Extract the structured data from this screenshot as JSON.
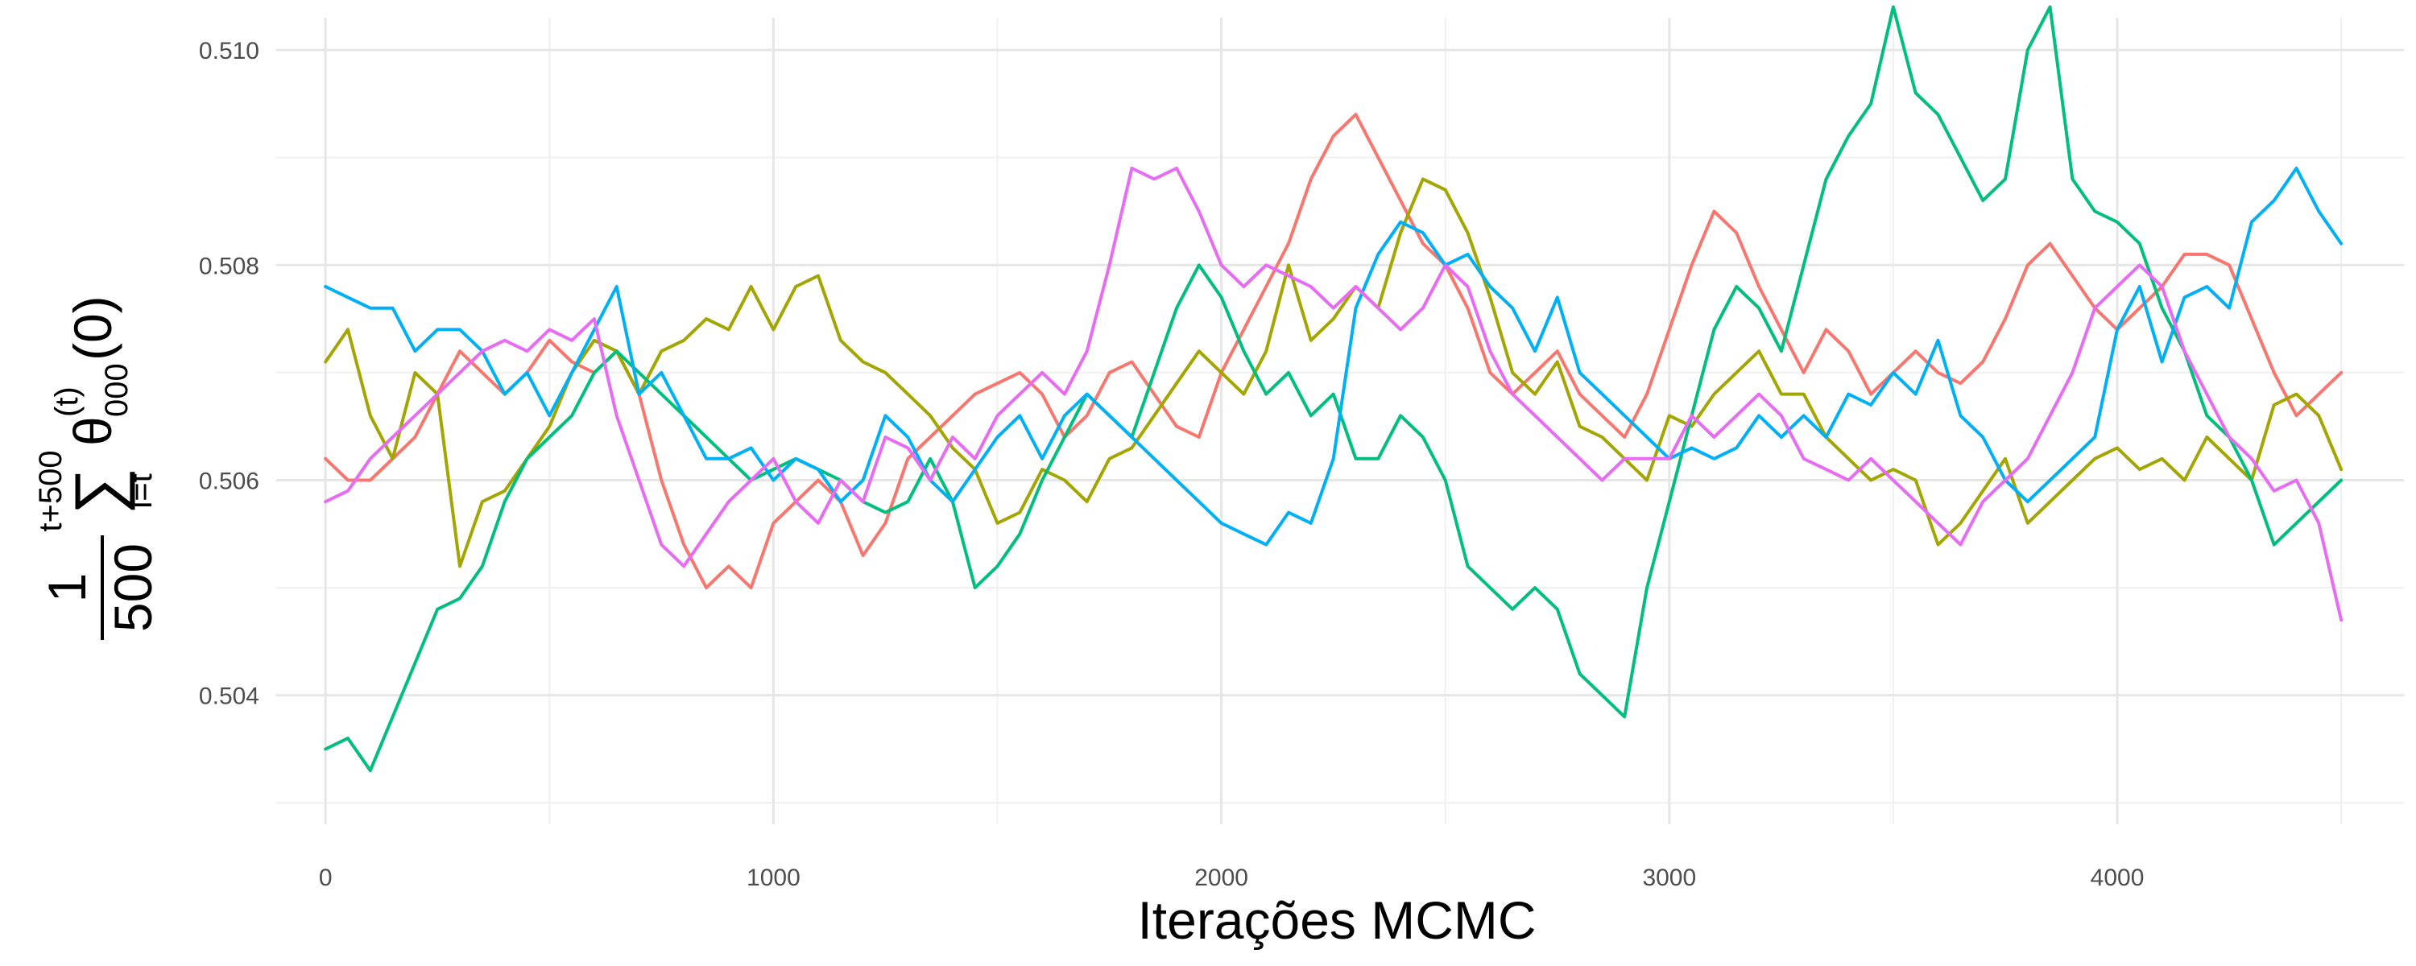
{
  "chart_data": {
    "type": "line",
    "title": "",
    "xlabel": "Iterações MCMC",
    "ylabel": {
      "fraction_numerator": "1",
      "fraction_denominator": "500",
      "sum_upper": "t+500",
      "sum_lower": "i=t",
      "symbol": "θ",
      "superscript": "(t)",
      "subscript": "000",
      "argument": "(0)"
    },
    "xlim": [
      -110,
      4640
    ],
    "ylim": [
      -0.5028,
      0.5103
    ],
    "x_ticks": [
      0,
      1000,
      2000,
      3000,
      4000
    ],
    "x_tick_labels": [
      "0",
      "1000",
      "2000",
      "3000",
      "4000"
    ],
    "y_ticks": [
      0.504,
      0.506,
      0.508,
      0.51
    ],
    "y_tick_labels": [
      "0.504",
      "0.506",
      "0.508",
      "0.510"
    ],
    "grid": true,
    "legend": "none",
    "x_step": 50,
    "series": [
      {
        "color": "#F8766D",
        "values": [
          0.5062,
          0.506,
          0.506,
          0.5062,
          0.5064,
          0.5068,
          0.5072,
          0.507,
          0.5068,
          0.507,
          0.5073,
          0.5071,
          0.507,
          0.5072,
          0.5068,
          0.506,
          0.5054,
          0.505,
          0.5052,
          0.505,
          0.5056,
          0.5058,
          0.506,
          0.5058,
          0.5053,
          0.5056,
          0.5062,
          0.5064,
          0.5066,
          0.5068,
          0.5069,
          0.507,
          0.5068,
          0.5064,
          0.5066,
          0.507,
          0.5071,
          0.5068,
          0.5065,
          0.5064,
          0.507,
          0.5074,
          0.5078,
          0.5082,
          0.5088,
          0.5092,
          0.5094,
          0.509,
          0.5086,
          0.5082,
          0.508,
          0.5076,
          0.507,
          0.5068,
          0.507,
          0.5072,
          0.5068,
          0.5066,
          0.5064,
          0.5068,
          0.5074,
          0.508,
          0.5085,
          0.5083,
          0.5078,
          0.5074,
          0.507,
          0.5074,
          0.5072,
          0.5068,
          0.507,
          0.5072,
          0.507,
          0.5069,
          0.5071,
          0.5075,
          0.508,
          0.5082,
          0.5079,
          0.5076,
          0.5074,
          0.5076,
          0.5078,
          0.5081,
          0.5081,
          0.508,
          0.5075,
          0.507,
          0.5066,
          0.5068,
          0.507
        ]
      },
      {
        "color": "#A3A500",
        "values": [
          0.5071,
          0.5074,
          0.5066,
          0.5062,
          0.507,
          0.5068,
          0.5052,
          0.5058,
          0.5059,
          0.5062,
          0.5065,
          0.507,
          0.5073,
          0.5072,
          0.5068,
          0.5072,
          0.5073,
          0.5075,
          0.5074,
          0.5078,
          0.5074,
          0.5078,
          0.5079,
          0.5073,
          0.5071,
          0.507,
          0.5068,
          0.5066,
          0.5063,
          0.5061,
          0.5056,
          0.5057,
          0.5061,
          0.506,
          0.5058,
          0.5062,
          0.5063,
          0.5066,
          0.5069,
          0.5072,
          0.507,
          0.5068,
          0.5072,
          0.508,
          0.5073,
          0.5075,
          0.5078,
          0.5076,
          0.5083,
          0.5088,
          0.5087,
          0.5083,
          0.5077,
          0.507,
          0.5068,
          0.5071,
          0.5065,
          0.5064,
          0.5062,
          0.506,
          0.5066,
          0.5065,
          0.5068,
          0.507,
          0.5072,
          0.5068,
          0.5068,
          0.5064,
          0.5062,
          0.506,
          0.5061,
          0.506,
          0.5054,
          0.5056,
          0.5059,
          0.5062,
          0.5056,
          0.5058,
          0.506,
          0.5062,
          0.5063,
          0.5061,
          0.5062,
          0.506,
          0.5064,
          0.5062,
          0.506,
          0.5067,
          0.5068,
          0.5066,
          0.5061
        ]
      },
      {
        "color": "#00BF7D",
        "values": [
          0.5035,
          0.5036,
          0.5033,
          0.5038,
          0.5043,
          0.5048,
          0.5049,
          0.5052,
          0.5058,
          0.5062,
          0.5064,
          0.5066,
          0.507,
          0.5072,
          0.507,
          0.5068,
          0.5066,
          0.5064,
          0.5062,
          0.506,
          0.5061,
          0.5062,
          0.5061,
          0.506,
          0.5058,
          0.5057,
          0.5058,
          0.5062,
          0.5058,
          0.505,
          0.5052,
          0.5055,
          0.506,
          0.5064,
          0.5068,
          0.5066,
          0.5064,
          0.507,
          0.5076,
          0.508,
          0.5077,
          0.5072,
          0.5068,
          0.507,
          0.5066,
          0.5068,
          0.5062,
          0.5062,
          0.5066,
          0.5064,
          0.506,
          0.5052,
          0.505,
          0.5048,
          0.505,
          0.5048,
          0.5042,
          0.504,
          0.5038,
          0.505,
          0.5058,
          0.5066,
          0.5074,
          0.5078,
          0.5076,
          0.5072,
          0.508,
          0.5088,
          0.5092,
          0.5095,
          0.5104,
          0.5096,
          0.5094,
          0.509,
          0.5086,
          0.5088,
          0.51,
          0.5104,
          0.5088,
          0.5085,
          0.5084,
          0.5082,
          0.5076,
          0.5072,
          0.5066,
          0.5064,
          0.506,
          0.5054,
          0.5056,
          0.5058,
          0.506
        ]
      },
      {
        "color": "#00B0F6",
        "values": [
          0.5078,
          0.5077,
          0.5076,
          0.5076,
          0.5072,
          0.5074,
          0.5074,
          0.5072,
          0.5068,
          0.507,
          0.5066,
          0.507,
          0.5074,
          0.5078,
          0.5068,
          0.507,
          0.5066,
          0.5062,
          0.5062,
          0.5063,
          0.506,
          0.5062,
          0.5061,
          0.5058,
          0.506,
          0.5066,
          0.5064,
          0.506,
          0.5058,
          0.5061,
          0.5064,
          0.5066,
          0.5062,
          0.5066,
          0.5068,
          0.5066,
          0.5064,
          0.5062,
          0.506,
          0.5058,
          0.5056,
          0.5055,
          0.5054,
          0.5057,
          0.5056,
          0.5062,
          0.5076,
          0.5081,
          0.5084,
          0.5083,
          0.508,
          0.5081,
          0.5078,
          0.5076,
          0.5072,
          0.5077,
          0.507,
          0.5068,
          0.5066,
          0.5064,
          0.5062,
          0.5063,
          0.5062,
          0.5063,
          0.5066,
          0.5064,
          0.5066,
          0.5064,
          0.5068,
          0.5067,
          0.507,
          0.5068,
          0.5073,
          0.5066,
          0.5064,
          0.506,
          0.5058,
          0.506,
          0.5062,
          0.5064,
          0.5074,
          0.5078,
          0.5071,
          0.5077,
          0.5078,
          0.5076,
          0.5084,
          0.5086,
          0.5089,
          0.5085,
          0.5082
        ]
      },
      {
        "color": "#E76BF3",
        "values": [
          0.5058,
          0.5059,
          0.5062,
          0.5064,
          0.5066,
          0.5068,
          0.507,
          0.5072,
          0.5073,
          0.5072,
          0.5074,
          0.5073,
          0.5075,
          0.5066,
          0.506,
          0.5054,
          0.5052,
          0.5055,
          0.5058,
          0.506,
          0.5062,
          0.5058,
          0.5056,
          0.506,
          0.5058,
          0.5064,
          0.5063,
          0.506,
          0.5064,
          0.5062,
          0.5066,
          0.5068,
          0.507,
          0.5068,
          0.5072,
          0.508,
          0.5089,
          0.5088,
          0.5089,
          0.5085,
          0.508,
          0.5078,
          0.508,
          0.5079,
          0.5078,
          0.5076,
          0.5078,
          0.5076,
          0.5074,
          0.5076,
          0.508,
          0.5078,
          0.5072,
          0.5068,
          0.5066,
          0.5064,
          0.5062,
          0.506,
          0.5062,
          0.5062,
          0.5062,
          0.5066,
          0.5064,
          0.5066,
          0.5068,
          0.5066,
          0.5062,
          0.5061,
          0.506,
          0.5062,
          0.506,
          0.5058,
          0.5056,
          0.5054,
          0.5058,
          0.506,
          0.5062,
          0.5066,
          0.507,
          0.5076,
          0.5078,
          0.508,
          0.5078,
          0.5072,
          0.5068,
          0.5064,
          0.5062,
          0.5059,
          0.506,
          0.5056,
          0.5047
        ]
      }
    ]
  }
}
